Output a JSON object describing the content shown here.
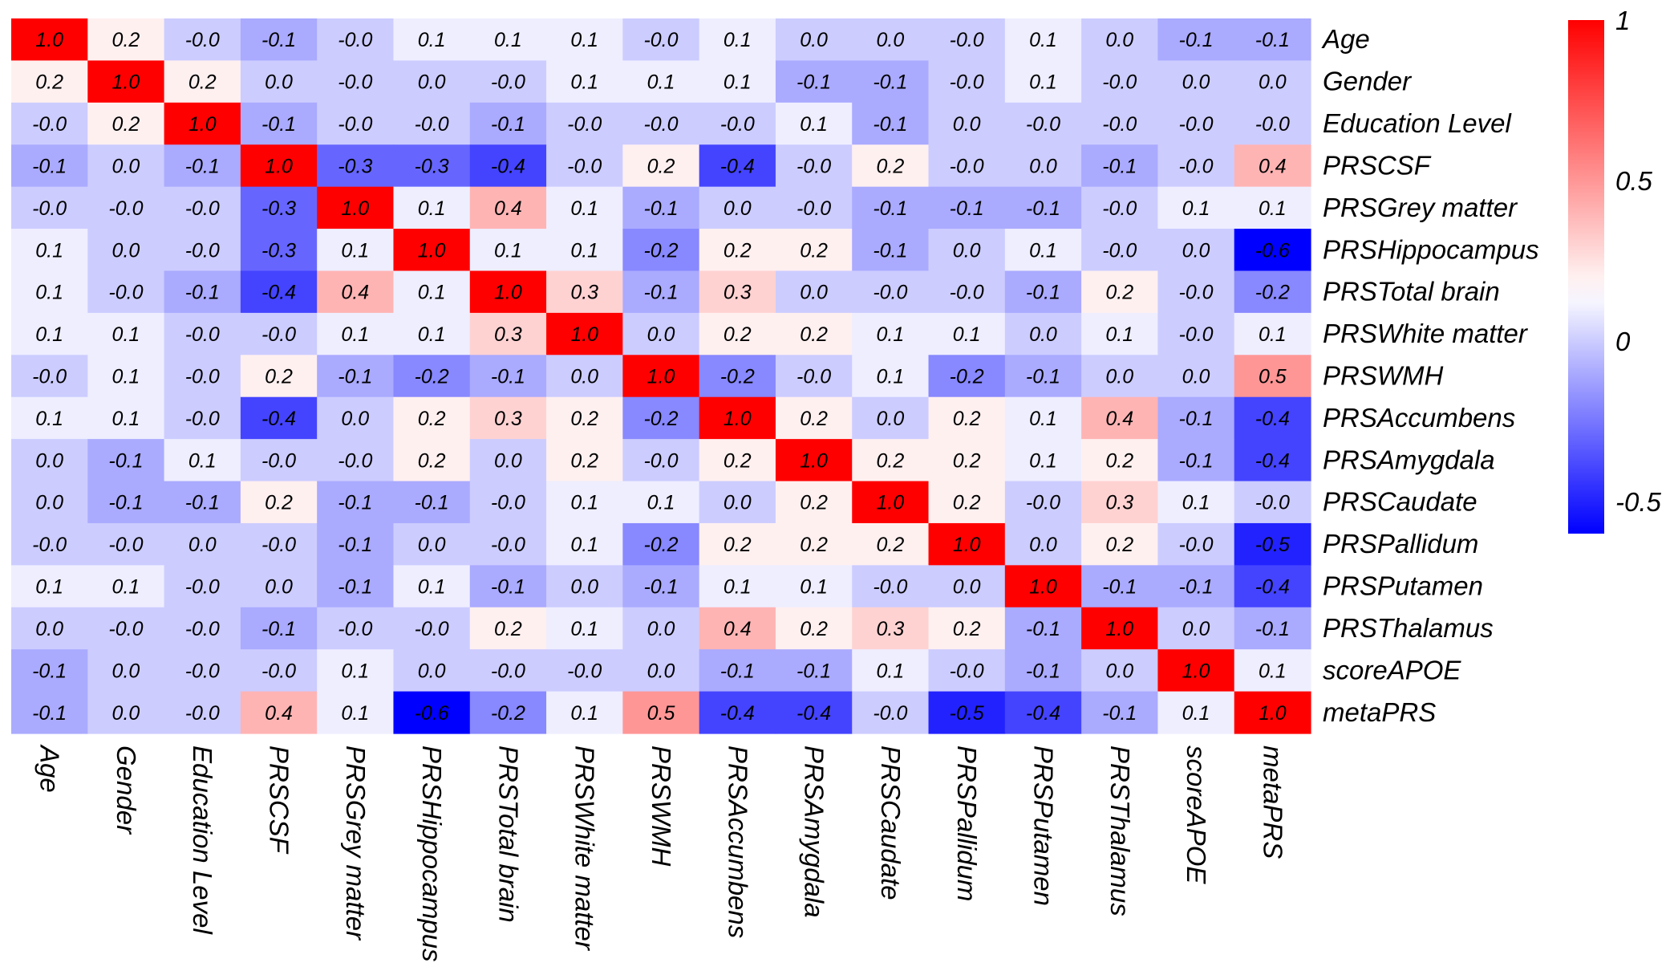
{
  "chart_data": {
    "type": "heatmap",
    "variables": [
      "Age",
      "Gender",
      "Education Level",
      "PRSCSF",
      "PRSGrey matter",
      "PRSHippocampus",
      "PRSTotal brain",
      "PRSWhite matter",
      "PRSWMH",
      "PRSAccumbens",
      "PRSAmygdala",
      "PRSCaudate",
      "PRSPallidum",
      "PRSPutamen",
      "PRSThalamus",
      "scoreAPOE",
      "metaPRS"
    ],
    "values": [
      [
        1.0,
        0.2,
        -0.0,
        -0.1,
        -0.0,
        0.1,
        0.1,
        0.1,
        -0.0,
        0.1,
        0.0,
        0.0,
        -0.0,
        0.1,
        0.0,
        -0.1,
        -0.1
      ],
      [
        0.2,
        1.0,
        0.2,
        0.0,
        -0.0,
        0.0,
        -0.0,
        0.1,
        0.1,
        0.1,
        -0.1,
        -0.1,
        -0.0,
        0.1,
        -0.0,
        0.0,
        0.0
      ],
      [
        -0.0,
        0.2,
        1.0,
        -0.1,
        -0.0,
        -0.0,
        -0.1,
        -0.0,
        -0.0,
        -0.0,
        0.1,
        -0.1,
        0.0,
        -0.0,
        -0.0,
        -0.0,
        -0.0
      ],
      [
        -0.1,
        0.0,
        -0.1,
        1.0,
        -0.3,
        -0.3,
        -0.4,
        -0.0,
        0.2,
        -0.4,
        -0.0,
        0.2,
        -0.0,
        0.0,
        -0.1,
        -0.0,
        0.4
      ],
      [
        -0.0,
        -0.0,
        -0.0,
        -0.3,
        1.0,
        0.1,
        0.4,
        0.1,
        -0.1,
        0.0,
        -0.0,
        -0.1,
        -0.1,
        -0.1,
        -0.0,
        0.1,
        0.1
      ],
      [
        0.1,
        0.0,
        -0.0,
        -0.3,
        0.1,
        1.0,
        0.1,
        0.1,
        -0.2,
        0.2,
        0.2,
        -0.1,
        0.0,
        0.1,
        -0.0,
        0.0,
        -0.6
      ],
      [
        0.1,
        -0.0,
        -0.1,
        -0.4,
        0.4,
        0.1,
        1.0,
        0.3,
        -0.1,
        0.3,
        0.0,
        -0.0,
        -0.0,
        -0.1,
        0.2,
        -0.0,
        -0.2
      ],
      [
        0.1,
        0.1,
        -0.0,
        -0.0,
        0.1,
        0.1,
        0.3,
        1.0,
        0.0,
        0.2,
        0.2,
        0.1,
        0.1,
        0.0,
        0.1,
        -0.0,
        0.1
      ],
      [
        -0.0,
        0.1,
        -0.0,
        0.2,
        -0.1,
        -0.2,
        -0.1,
        0.0,
        1.0,
        -0.2,
        -0.0,
        0.1,
        -0.2,
        -0.1,
        0.0,
        0.0,
        0.5
      ],
      [
        0.1,
        0.1,
        -0.0,
        -0.4,
        0.0,
        0.2,
        0.3,
        0.2,
        -0.2,
        1.0,
        0.2,
        0.0,
        0.2,
        0.1,
        0.4,
        -0.1,
        -0.4
      ],
      [
        0.0,
        -0.1,
        0.1,
        -0.0,
        -0.0,
        0.2,
        0.0,
        0.2,
        -0.0,
        0.2,
        1.0,
        0.2,
        0.2,
        0.1,
        0.2,
        -0.1,
        -0.4
      ],
      [
        0.0,
        -0.1,
        -0.1,
        0.2,
        -0.1,
        -0.1,
        -0.0,
        0.1,
        0.1,
        0.0,
        0.2,
        1.0,
        0.2,
        -0.0,
        0.3,
        0.1,
        -0.0
      ],
      [
        -0.0,
        -0.0,
        0.0,
        -0.0,
        -0.1,
        0.0,
        -0.0,
        0.1,
        -0.2,
        0.2,
        0.2,
        0.2,
        1.0,
        0.0,
        0.2,
        -0.0,
        -0.5
      ],
      [
        0.1,
        0.1,
        -0.0,
        0.0,
        -0.1,
        0.1,
        -0.1,
        0.0,
        -0.1,
        0.1,
        0.1,
        -0.0,
        0.0,
        1.0,
        -0.1,
        -0.1,
        -0.4
      ],
      [
        0.0,
        -0.0,
        -0.0,
        -0.1,
        -0.0,
        -0.0,
        0.2,
        0.1,
        0.0,
        0.4,
        0.2,
        0.3,
        0.2,
        -0.1,
        1.0,
        0.0,
        -0.1
      ],
      [
        -0.1,
        0.0,
        -0.0,
        -0.0,
        0.1,
        0.0,
        -0.0,
        -0.0,
        0.0,
        -0.1,
        -0.1,
        0.1,
        -0.0,
        -0.1,
        0.0,
        1.0,
        0.1
      ],
      [
        -0.1,
        0.0,
        -0.0,
        0.4,
        0.1,
        -0.6,
        -0.2,
        0.1,
        0.5,
        -0.4,
        -0.4,
        -0.0,
        -0.5,
        -0.4,
        -0.1,
        0.1,
        1.0
      ]
    ],
    "value_labels": [
      [
        "1.0",
        "0.2",
        "-0.0",
        "-0.1",
        "-0.0",
        "0.1",
        "0.1",
        "0.1",
        "-0.0",
        "0.1",
        "0.0",
        "0.0",
        "-0.0",
        "0.1",
        "0.0",
        "-0.1",
        "-0.1"
      ],
      [
        "0.2",
        "1.0",
        "0.2",
        "0.0",
        "-0.0",
        "0.0",
        "-0.0",
        "0.1",
        "0.1",
        "0.1",
        "-0.1",
        "-0.1",
        "-0.0",
        "0.1",
        "-0.0",
        "0.0",
        "0.0"
      ],
      [
        "-0.0",
        "0.2",
        "1.0",
        "-0.1",
        "-0.0",
        "-0.0",
        "-0.1",
        "-0.0",
        "-0.0",
        "-0.0",
        "0.1",
        "-0.1",
        "0.0",
        "-0.0",
        "-0.0",
        "-0.0",
        "-0.0"
      ],
      [
        "-0.1",
        "0.0",
        "-0.1",
        "1.0",
        "-0.3",
        "-0.3",
        "-0.4",
        "-0.0",
        "0.2",
        "-0.4",
        "-0.0",
        "0.2",
        "-0.0",
        "0.0",
        "-0.1",
        "-0.0",
        "0.4"
      ],
      [
        "-0.0",
        "-0.0",
        "-0.0",
        "-0.3",
        "1.0",
        "0.1",
        "0.4",
        "0.1",
        "-0.1",
        "0.0",
        "-0.0",
        "-0.1",
        "-0.1",
        "-0.1",
        "-0.0",
        "0.1",
        "0.1"
      ],
      [
        "0.1",
        "0.0",
        "-0.0",
        "-0.3",
        "0.1",
        "1.0",
        "0.1",
        "0.1",
        "-0.2",
        "0.2",
        "0.2",
        "-0.1",
        "0.0",
        "0.1",
        "-0.0",
        "0.0",
        "-0.6"
      ],
      [
        "0.1",
        "-0.0",
        "-0.1",
        "-0.4",
        "0.4",
        "0.1",
        "1.0",
        "0.3",
        "-0.1",
        "0.3",
        "0.0",
        "-0.0",
        "-0.0",
        "-0.1",
        "0.2",
        "-0.0",
        "-0.2"
      ],
      [
        "0.1",
        "0.1",
        "-0.0",
        "-0.0",
        "0.1",
        "0.1",
        "0.3",
        "1.0",
        "0.0",
        "0.2",
        "0.2",
        "0.1",
        "0.1",
        "0.0",
        "0.1",
        "-0.0",
        "0.1"
      ],
      [
        "-0.0",
        "0.1",
        "-0.0",
        "0.2",
        "-0.1",
        "-0.2",
        "-0.1",
        "0.0",
        "1.0",
        "-0.2",
        "-0.0",
        "0.1",
        "-0.2",
        "-0.1",
        "0.0",
        "0.0",
        "0.5"
      ],
      [
        "0.1",
        "0.1",
        "-0.0",
        "-0.4",
        "0.0",
        "0.2",
        "0.3",
        "0.2",
        "-0.2",
        "1.0",
        "0.2",
        "0.0",
        "0.2",
        "0.1",
        "0.4",
        "-0.1",
        "-0.4"
      ],
      [
        "0.0",
        "-0.1",
        "0.1",
        "-0.0",
        "-0.0",
        "0.2",
        "0.0",
        "0.2",
        "-0.0",
        "0.2",
        "1.0",
        "0.2",
        "0.2",
        "0.1",
        "0.2",
        "-0.1",
        "-0.4"
      ],
      [
        "0.0",
        "-0.1",
        "-0.1",
        "0.2",
        "-0.1",
        "-0.1",
        "-0.0",
        "0.1",
        "0.1",
        "0.0",
        "0.2",
        "1.0",
        "0.2",
        "-0.0",
        "0.3",
        "0.1",
        "-0.0"
      ],
      [
        "-0.0",
        "-0.0",
        "0.0",
        "-0.0",
        "-0.1",
        "0.0",
        "-0.0",
        "0.1",
        "-0.2",
        "0.2",
        "0.2",
        "0.2",
        "1.0",
        "0.0",
        "0.2",
        "-0.0",
        "-0.5"
      ],
      [
        "0.1",
        "0.1",
        "-0.0",
        "0.0",
        "-0.1",
        "0.1",
        "-0.1",
        "0.0",
        "-0.1",
        "0.1",
        "0.1",
        "-0.0",
        "0.0",
        "1.0",
        "-0.1",
        "-0.1",
        "-0.4"
      ],
      [
        "0.0",
        "-0.0",
        "-0.0",
        "-0.1",
        "-0.0",
        "-0.0",
        "0.2",
        "0.1",
        "0.0",
        "0.4",
        "0.2",
        "0.3",
        "0.2",
        "-0.1",
        "1.0",
        "0.0",
        "-0.1"
      ],
      [
        "-0.1",
        "0.0",
        "-0.0",
        "-0.0",
        "0.1",
        "0.0",
        "-0.0",
        "-0.0",
        "0.0",
        "-0.1",
        "-0.1",
        "0.1",
        "-0.0",
        "-0.1",
        "0.0",
        "1.0",
        "0.1"
      ],
      [
        "-0.1",
        "0.0",
        "-0.0",
        "0.4",
        "0.1",
        "-0.6",
        "-0.2",
        "0.1",
        "0.5",
        "-0.4",
        "-0.4",
        "-0.0",
        "-0.5",
        "-0.4",
        "-0.1",
        "0.1",
        "1.0"
      ]
    ],
    "color_scale": {
      "min": -0.6,
      "mid": 0.15,
      "max": 1.0,
      "min_color": "#0000ff",
      "mid_color": "#ffffff",
      "max_color": "#ff0000",
      "tick_values": [
        1,
        0.5,
        0,
        -0.5
      ],
      "tick_labels": [
        "1",
        "0.5",
        "0",
        "-0.5"
      ]
    },
    "row_label_position": "right",
    "column_label_position": "bottom",
    "column_label_rotation": "vertical (top-to-bottom)",
    "colorbar_position": "right"
  }
}
